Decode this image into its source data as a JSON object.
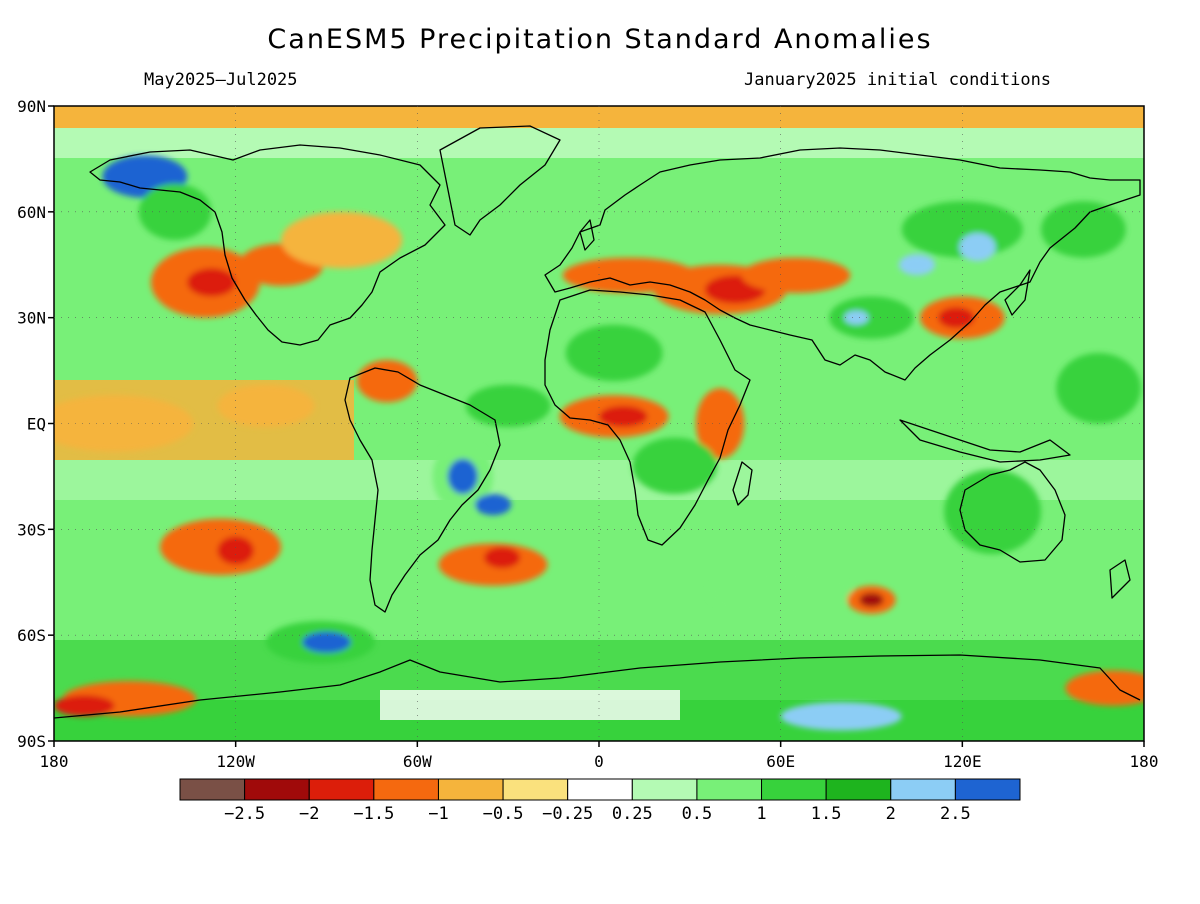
{
  "title": "CanESM5 Precipitation Standard Anomalies",
  "subtitle_left": "May2025–Jul2025",
  "subtitle_right": "January2025 initial conditions",
  "map": {
    "lon_range": [
      -180,
      180
    ],
    "lat_range": [
      -90,
      90
    ],
    "lat_ticks": [
      {
        "value": 90,
        "label": "90N"
      },
      {
        "value": 60,
        "label": "60N"
      },
      {
        "value": 30,
        "label": "30N"
      },
      {
        "value": 0,
        "label": "EQ"
      },
      {
        "value": -30,
        "label": "30S"
      },
      {
        "value": -60,
        "label": "60S"
      },
      {
        "value": -90,
        "label": "90S"
      }
    ],
    "lon_ticks": [
      {
        "value": -180,
        "label": "180"
      },
      {
        "value": -120,
        "label": "120W"
      },
      {
        "value": -60,
        "label": "60W"
      },
      {
        "value": 0,
        "label": "0"
      },
      {
        "value": 60,
        "label": "60E"
      },
      {
        "value": 120,
        "label": "120E"
      },
      {
        "value": 180,
        "label": "180"
      }
    ]
  },
  "colorbar": {
    "colors": [
      "#7a5046",
      "#a00a0a",
      "#dc1e0a",
      "#f5690f",
      "#f5b43c",
      "#fae17d",
      "#ffffff",
      "#b4fab4",
      "#78f078",
      "#37d23c",
      "#1eb41e",
      "#8ccdf5",
      "#1e64d2"
    ],
    "labels": [
      "−2.5",
      "−2",
      "−1.5",
      "−1",
      "−0.5",
      "−0.25",
      "0.25",
      "0.5",
      "1",
      "1.5",
      "2",
      "2.5"
    ]
  },
  "anomaly_blobs": [
    {
      "lon": -150,
      "lat": 70,
      "rx": 14,
      "ry": 6,
      "c": 12
    },
    {
      "lon": -140,
      "lat": 60,
      "rx": 12,
      "ry": 8,
      "c": 9
    },
    {
      "lon": -130,
      "lat": 40,
      "rx": 18,
      "ry": 10,
      "c": 3
    },
    {
      "lon": -128,
      "lat": 40,
      "rx": 8,
      "ry": 4,
      "c": 2
    },
    {
      "lon": -105,
      "lat": 45,
      "rx": 14,
      "ry": 6,
      "c": 3
    },
    {
      "lon": -85,
      "lat": 52,
      "rx": 20,
      "ry": 8,
      "c": 4
    },
    {
      "lon": -160,
      "lat": 0,
      "rx": 26,
      "ry": 8,
      "c": 4
    },
    {
      "lon": -110,
      "lat": 5,
      "rx": 16,
      "ry": 6,
      "c": 4
    },
    {
      "lon": -125,
      "lat": -35,
      "rx": 20,
      "ry": 8,
      "c": 3
    },
    {
      "lon": -120,
      "lat": -36,
      "rx": 6,
      "ry": 4,
      "c": 2
    },
    {
      "lon": -45,
      "lat": -15,
      "rx": 10,
      "ry": 10,
      "c": 8
    },
    {
      "lon": -45,
      "lat": -15,
      "rx": 5,
      "ry": 5,
      "c": 12
    },
    {
      "lon": -35,
      "lat": -23,
      "rx": 6,
      "ry": 3,
      "c": 12
    },
    {
      "lon": -35,
      "lat": -40,
      "rx": 18,
      "ry": 6,
      "c": 3
    },
    {
      "lon": -32,
      "lat": -38,
      "rx": 6,
      "ry": 3,
      "c": 2
    },
    {
      "lon": -92,
      "lat": -62,
      "rx": 18,
      "ry": 6,
      "c": 9
    },
    {
      "lon": -90,
      "lat": -62,
      "rx": 8,
      "ry": 3,
      "c": 12
    },
    {
      "lon": -155,
      "lat": -78,
      "rx": 22,
      "ry": 5,
      "c": 3
    },
    {
      "lon": -170,
      "lat": -80,
      "rx": 10,
      "ry": 3,
      "c": 2
    },
    {
      "lon": 10,
      "lat": 42,
      "rx": 22,
      "ry": 5,
      "c": 3
    },
    {
      "lon": 40,
      "lat": 38,
      "rx": 22,
      "ry": 7,
      "c": 3
    },
    {
      "lon": 45,
      "lat": 38,
      "rx": 10,
      "ry": 4,
      "c": 2
    },
    {
      "lon": 65,
      "lat": 42,
      "rx": 18,
      "ry": 5,
      "c": 3
    },
    {
      "lon": 5,
      "lat": 2,
      "rx": 18,
      "ry": 6,
      "c": 3
    },
    {
      "lon": 8,
      "lat": 2,
      "rx": 8,
      "ry": 3,
      "c": 2
    },
    {
      "lon": 40,
      "lat": 0,
      "rx": 8,
      "ry": 10,
      "c": 3
    },
    {
      "lon": 5,
      "lat": 20,
      "rx": 16,
      "ry": 8,
      "c": 9
    },
    {
      "lon": 25,
      "lat": -12,
      "rx": 14,
      "ry": 8,
      "c": 9
    },
    {
      "lon": 60,
      "lat": -48,
      "rx": 24,
      "ry": 6,
      "c": 8
    },
    {
      "lon": 90,
      "lat": -50,
      "rx": 8,
      "ry": 4,
      "c": 3
    },
    {
      "lon": 90,
      "lat": -50,
      "rx": 4,
      "ry": 2,
      "c": 1
    },
    {
      "lon": 120,
      "lat": 55,
      "rx": 20,
      "ry": 8,
      "c": 9
    },
    {
      "lon": 125,
      "lat": 50,
      "rx": 6,
      "ry": 4,
      "c": 11
    },
    {
      "lon": 105,
      "lat": 45,
      "rx": 6,
      "ry": 3,
      "c": 11
    },
    {
      "lon": 120,
      "lat": 30,
      "rx": 14,
      "ry": 6,
      "c": 3
    },
    {
      "lon": 118,
      "lat": 30,
      "rx": 6,
      "ry": 3,
      "c": 2
    },
    {
      "lon": 90,
      "lat": 30,
      "rx": 14,
      "ry": 6,
      "c": 9
    },
    {
      "lon": 85,
      "lat": 30,
      "rx": 4,
      "ry": 2,
      "c": 11
    },
    {
      "lon": 130,
      "lat": -25,
      "rx": 16,
      "ry": 12,
      "c": 9
    },
    {
      "lon": 165,
      "lat": 10,
      "rx": 14,
      "ry": 10,
      "c": 9
    },
    {
      "lon": 160,
      "lat": 55,
      "rx": 14,
      "ry": 8,
      "c": 9
    },
    {
      "lon": 170,
      "lat": -75,
      "rx": 16,
      "ry": 5,
      "c": 3
    },
    {
      "lon": 80,
      "lat": -83,
      "rx": 20,
      "ry": 4,
      "c": 11
    },
    {
      "lon": -30,
      "lat": 5,
      "rx": 14,
      "ry": 6,
      "c": 9
    },
    {
      "lon": -70,
      "lat": 12,
      "rx": 10,
      "ry": 6,
      "c": 3
    }
  ]
}
